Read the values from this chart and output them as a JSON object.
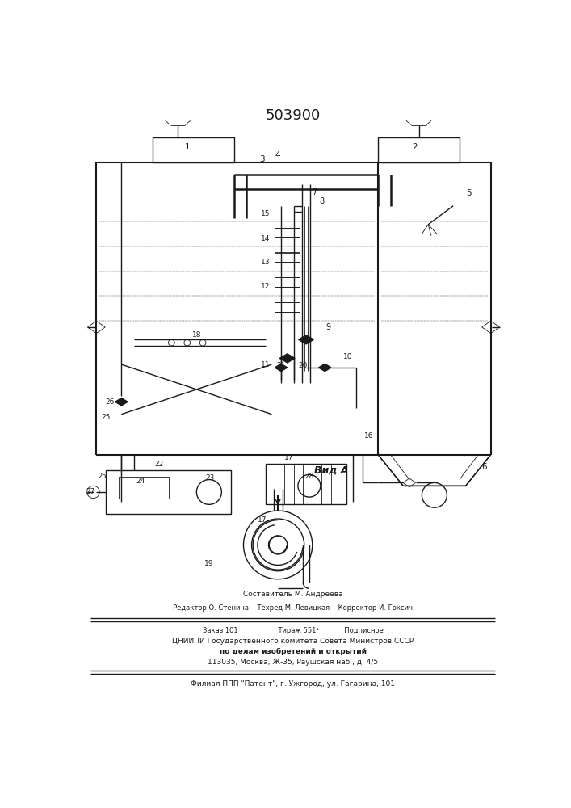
{
  "title": "503900",
  "bg_color": "#ffffff",
  "line_color": "#1a1a1a",
  "lw": 1.0,
  "tlw": 0.6,
  "footer_lines": [
    "Составитель М. Андреева",
    "Редактор О. Стенина    Техред М. Левицкая    Корректор И. Гоксич",
    "Заказ 101                   Тираж 551¹            Подписное",
    "ЦНИИПИ Государственного комитета Совета Министров СССР",
    "по делам изобретений и открытий",
    "113035, Москва, Ж-35, Раушская наб., д. 4/5",
    "Филиал ППП \"Патент\", г. Ужгород, ул. Гагарина, 101"
  ]
}
